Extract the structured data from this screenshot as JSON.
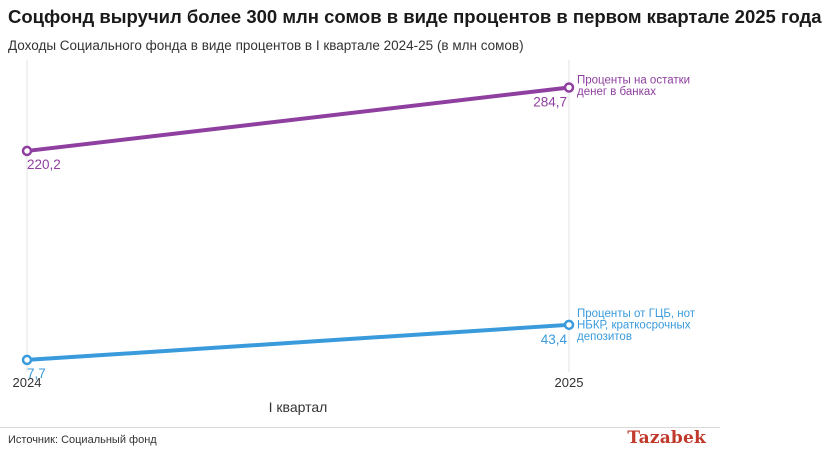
{
  "header": {
    "title": "Соцфонд выручил более 300 млн сомов в виде процентов в первом квартале 2025 года",
    "subtitle": "Доходы Социального фонда в виде процентов в I квартале 2024-25 (в млн сомов)"
  },
  "footer": {
    "source": "Источник: Социальный фонд",
    "logo": "Tazabek"
  },
  "colors": {
    "purple": "#8e3f9f",
    "blue": "#3a9bdc",
    "grid": "#e3e3e3"
  },
  "chart_data": {
    "type": "line",
    "x": [
      "2024",
      "2025"
    ],
    "xlabel": "I квартал",
    "ylabel": "",
    "ylim": [
      0,
      300
    ],
    "grid": true,
    "series": [
      {
        "name": "Проценты на остатки денег в банках",
        "label_lines": [
          "Проценты на остатки",
          "денег в банках"
        ],
        "value_labels": [
          "220,2",
          "284,7"
        ],
        "values": [
          220.2,
          284.7
        ],
        "color": "#8e3f9f"
      },
      {
        "name": "Проценты от ГЦБ, нот НБКР, краткосрочных депозитов",
        "label_lines": [
          "Проценты от ГЦБ, нот",
          "НБКР, краткосрочных",
          "депозитов"
        ],
        "value_labels": [
          "7,7",
          "43,4"
        ],
        "values": [
          7.7,
          43.4
        ],
        "color": "#3a9bdc"
      }
    ]
  }
}
